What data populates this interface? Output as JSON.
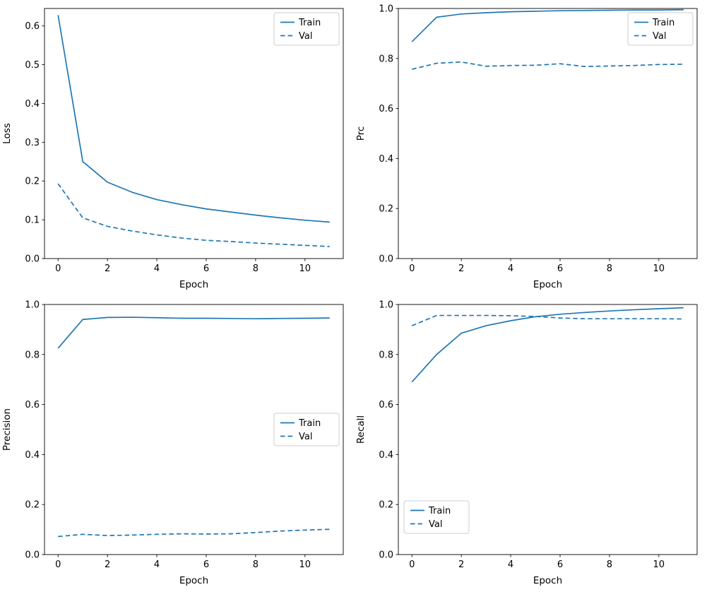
{
  "figure_title": "",
  "style": {
    "line_color": "#1f77b4",
    "spine_color": "#000000",
    "legend_border_color": "#cccccc",
    "background": "#ffffff"
  },
  "chart_data": [
    {
      "id": "loss",
      "type": "line",
      "title": "",
      "xlabel": "Epoch",
      "ylabel": "Loss",
      "x": [
        0,
        1,
        2,
        3,
        4,
        5,
        6,
        7,
        8,
        9,
        10,
        11
      ],
      "xlim": [
        -0.55,
        11.55
      ],
      "ylim": [
        0,
        0.645
      ],
      "xticks": [
        0,
        2,
        4,
        6,
        8,
        10
      ],
      "yticks": [
        0.0,
        0.1,
        0.2,
        0.3,
        0.4,
        0.5,
        0.6
      ],
      "legend_loc": "upper right",
      "legend_entries": [
        "Train",
        "Val"
      ],
      "series": [
        {
          "name": "Train",
          "style": "solid",
          "values": [
            0.628,
            0.25,
            0.197,
            0.171,
            0.152,
            0.139,
            0.128,
            0.12,
            0.112,
            0.105,
            0.099,
            0.094
          ]
        },
        {
          "name": "Val",
          "style": "dashed",
          "values": [
            0.193,
            0.105,
            0.083,
            0.071,
            0.061,
            0.053,
            0.047,
            0.044,
            0.04,
            0.037,
            0.034,
            0.031
          ]
        }
      ]
    },
    {
      "id": "prc",
      "type": "line",
      "title": "",
      "xlabel": "Epoch",
      "ylabel": "Prc",
      "x": [
        0,
        1,
        2,
        3,
        4,
        5,
        6,
        7,
        8,
        9,
        10,
        11
      ],
      "xlim": [
        -0.55,
        11.55
      ],
      "ylim": [
        0,
        1.0
      ],
      "xticks": [
        0,
        2,
        4,
        6,
        8,
        10
      ],
      "yticks": [
        0.0,
        0.2,
        0.4,
        0.6,
        0.8,
        1.0
      ],
      "legend_loc": "upper right",
      "legend_entries": [
        "Train",
        "Val"
      ],
      "series": [
        {
          "name": "Train",
          "style": "solid",
          "values": [
            0.867,
            0.965,
            0.978,
            0.983,
            0.987,
            0.989,
            0.991,
            0.992,
            0.993,
            0.994,
            0.994,
            0.995
          ]
        },
        {
          "name": "Val",
          "style": "dashed",
          "values": [
            0.757,
            0.781,
            0.786,
            0.769,
            0.772,
            0.773,
            0.779,
            0.768,
            0.77,
            0.772,
            0.776,
            0.777
          ]
        }
      ]
    },
    {
      "id": "precision",
      "type": "line",
      "title": "",
      "xlabel": "Epoch",
      "ylabel": "Precision",
      "x": [
        0,
        1,
        2,
        3,
        4,
        5,
        6,
        7,
        8,
        9,
        10,
        11
      ],
      "xlim": [
        -0.55,
        11.55
      ],
      "ylim": [
        0,
        1.0
      ],
      "xticks": [
        0,
        2,
        4,
        6,
        8,
        10
      ],
      "yticks": [
        0.0,
        0.2,
        0.4,
        0.6,
        0.8,
        1.0
      ],
      "legend_loc": "center right",
      "legend_entries": [
        "Train",
        "Val"
      ],
      "series": [
        {
          "name": "Train",
          "style": "solid",
          "values": [
            0.825,
            0.94,
            0.948,
            0.949,
            0.947,
            0.945,
            0.945,
            0.944,
            0.943,
            0.944,
            0.945,
            0.946
          ]
        },
        {
          "name": "Val",
          "style": "dashed",
          "values": [
            0.072,
            0.081,
            0.076,
            0.078,
            0.081,
            0.083,
            0.082,
            0.083,
            0.088,
            0.094,
            0.098,
            0.101
          ]
        }
      ]
    },
    {
      "id": "recall",
      "type": "line",
      "title": "",
      "xlabel": "Epoch",
      "ylabel": "Recall",
      "x": [
        0,
        1,
        2,
        3,
        4,
        5,
        6,
        7,
        8,
        9,
        10,
        11
      ],
      "xlim": [
        -0.55,
        11.55
      ],
      "ylim": [
        0,
        1.0
      ],
      "xticks": [
        0,
        2,
        4,
        6,
        8,
        10
      ],
      "yticks": [
        0.0,
        0.2,
        0.4,
        0.6,
        0.8,
        1.0
      ],
      "legend_loc": "lower left",
      "legend_entries": [
        "Train",
        "Val"
      ],
      "series": [
        {
          "name": "Train",
          "style": "solid",
          "values": [
            0.69,
            0.8,
            0.885,
            0.915,
            0.935,
            0.951,
            0.961,
            0.968,
            0.974,
            0.979,
            0.983,
            0.987
          ]
        },
        {
          "name": "Val",
          "style": "dashed",
          "values": [
            0.915,
            0.956,
            0.956,
            0.956,
            0.955,
            0.952,
            0.946,
            0.943,
            0.943,
            0.943,
            0.943,
            0.942
          ]
        }
      ]
    }
  ]
}
